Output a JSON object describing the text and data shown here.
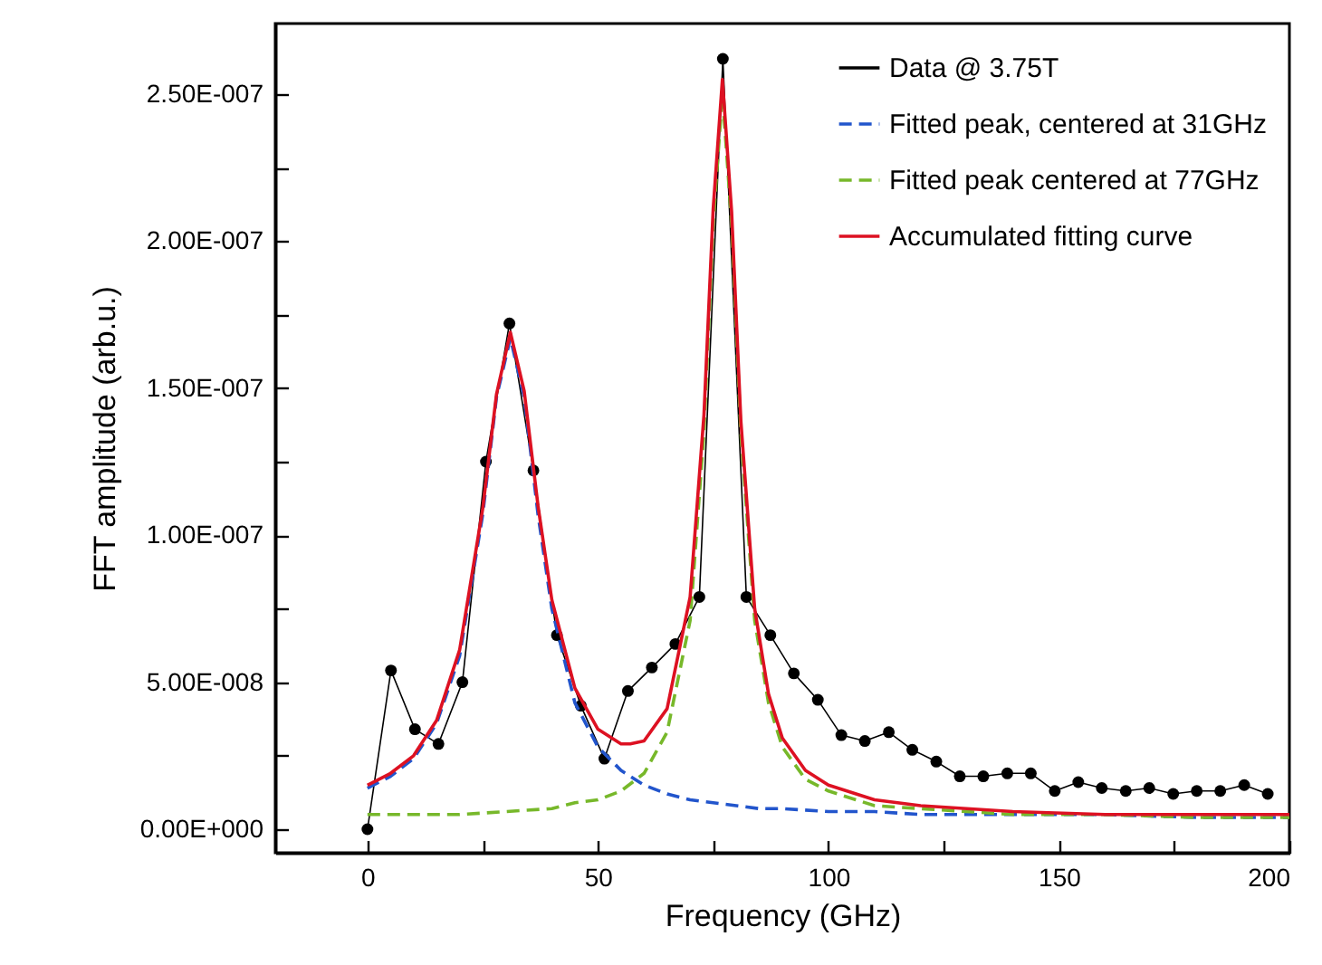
{
  "chart_data": {
    "type": "line",
    "xlabel": "Frequency (GHz)",
    "ylabel": "FFT amplitude (arb.u.)",
    "xlim": [
      -20,
      200
    ],
    "xticks": [
      0,
      {
        "value": 25,
        "label": null
      },
      50,
      {
        "value": 75,
        "label": null
      },
      100,
      {
        "value": 125,
        "label": null
      },
      150,
      {
        "value": 175,
        "label": null
      },
      200
    ],
    "ylim": [
      -8e-09,
      2.74e-07
    ],
    "yticks": [
      {
        "value": 0,
        "label": "0.00E+000"
      },
      {
        "value": 2.5e-08,
        "label": null
      },
      {
        "value": 5e-08,
        "label": "5.00E-008"
      },
      {
        "value": 7.5e-08,
        "label": null
      },
      {
        "value": 1e-07,
        "label": "1.00E-007"
      },
      {
        "value": 1.25e-07,
        "label": null
      },
      {
        "value": 1.5e-07,
        "label": "1.50E-007"
      },
      {
        "value": 1.75e-07,
        "label": null
      },
      {
        "value": 2e-07,
        "label": "2.00E-007"
      },
      {
        "value": 2.25e-07,
        "label": null
      },
      {
        "value": 2.5e-07,
        "label": "2.50E-007"
      }
    ],
    "grid": false,
    "legend": "top right",
    "series": [
      {
        "name": "Data @ 3.75T",
        "color": "#000000",
        "marker": "circle",
        "line_style": "solid",
        "x": [
          0,
          5.1,
          10.3,
          15.4,
          20.6,
          25.7,
          30.8,
          36,
          41.1,
          46.3,
          51.4,
          56.5,
          61.7,
          66.8,
          72,
          77.1,
          82.2,
          87.4,
          92.5,
          97.7,
          102.8,
          107.9,
          113.1,
          118.2,
          123.4,
          128.5,
          133.6,
          138.8,
          143.9,
          149.1,
          154.2,
          159.3,
          164.5,
          169.6,
          174.8,
          179.9,
          185,
          190.2,
          195.3
        ],
        "values": [
          0,
          5.4e-08,
          3.4e-08,
          2.9e-08,
          5e-08,
          1.25e-07,
          1.72e-07,
          1.22e-07,
          6.6e-08,
          4.2e-08,
          2.4e-08,
          4.7e-08,
          5.5e-08,
          6.3e-08,
          7.9e-08,
          2.62e-07,
          7.9e-08,
          6.6e-08,
          5.3e-08,
          4.4e-08,
          3.2e-08,
          3e-08,
          3.3e-08,
          2.7e-08,
          2.3e-08,
          1.8e-08,
          1.8e-08,
          1.9e-08,
          1.9e-08,
          1.3e-08,
          1.6e-08,
          1.4e-08,
          1.3e-08,
          1.4e-08,
          1.2e-08,
          1.3e-08,
          1.3e-08,
          1.5e-08,
          1.2e-08
        ]
      },
      {
        "name": "Fitted peak, centered at 31GHz",
        "color": "#2255cc",
        "marker": "none",
        "line_style": "dashed",
        "x": [
          0,
          5,
          10,
          15,
          20,
          25,
          28,
          31,
          34,
          37,
          40,
          45,
          50,
          55,
          60,
          65,
          70,
          75,
          80,
          85,
          90,
          100,
          110,
          120,
          140,
          160,
          180,
          200
        ],
        "values": [
          1.4e-08,
          1.8e-08,
          2.4e-08,
          3.6e-08,
          5.9e-08,
          1.07e-07,
          1.47e-07,
          1.67e-07,
          1.47e-07,
          1.07e-07,
          7.5e-08,
          4.3e-08,
          2.8e-08,
          2e-08,
          1.5e-08,
          1.2e-08,
          1e-08,
          9e-09,
          8e-09,
          7e-09,
          7e-09,
          6e-09,
          6e-09,
          5e-09,
          5e-09,
          5e-09,
          4e-09,
          4e-09
        ]
      },
      {
        "name": "Fitted peak centered at 77GHz",
        "color": "#77b82a",
        "marker": "none",
        "line_style": "dashed",
        "x": [
          0,
          10,
          20,
          30,
          40,
          45,
          50,
          55,
          60,
          65,
          70,
          73,
          75,
          77,
          79,
          81,
          84,
          87,
          90,
          95,
          100,
          110,
          120,
          140,
          160,
          180,
          200
        ],
        "values": [
          5e-09,
          5e-09,
          5e-09,
          6e-09,
          7e-09,
          9e-09,
          1e-08,
          1.3e-08,
          1.9e-08,
          3.3e-08,
          7.1e-08,
          1.35e-07,
          2.06e-07,
          2.5e-07,
          2.06e-07,
          1.35e-07,
          7.1e-08,
          4.3e-08,
          2.8e-08,
          1.7e-08,
          1.3e-08,
          8e-09,
          7e-09,
          5e-09,
          5e-09,
          4e-09,
          4e-09
        ]
      },
      {
        "name": "Accumulated fitting curve",
        "color": "#dd1122",
        "marker": "none",
        "line_style": "solid",
        "x": [
          0,
          5,
          10,
          15,
          20,
          25,
          28,
          31,
          34,
          37,
          40,
          45,
          50,
          55,
          57,
          60,
          65,
          70,
          73,
          75,
          77,
          79,
          81,
          84,
          87,
          90,
          95,
          100,
          110,
          120,
          140,
          160,
          180,
          200
        ],
        "values": [
          1.5e-08,
          1.9e-08,
          2.5e-08,
          3.7e-08,
          6.1e-08,
          1.09e-07,
          1.48e-07,
          1.69e-07,
          1.49e-07,
          1.1e-07,
          7.8e-08,
          4.8e-08,
          3.4e-08,
          2.9e-08,
          2.9e-08,
          3e-08,
          4.1e-08,
          7.9e-08,
          1.41e-07,
          2.11e-07,
          2.55e-07,
          2.1e-07,
          1.39e-07,
          7.5e-08,
          4.6e-08,
          3.1e-08,
          2e-08,
          1.5e-08,
          1e-08,
          8e-09,
          6e-09,
          5e-09,
          5e-09,
          5e-09
        ]
      }
    ]
  }
}
